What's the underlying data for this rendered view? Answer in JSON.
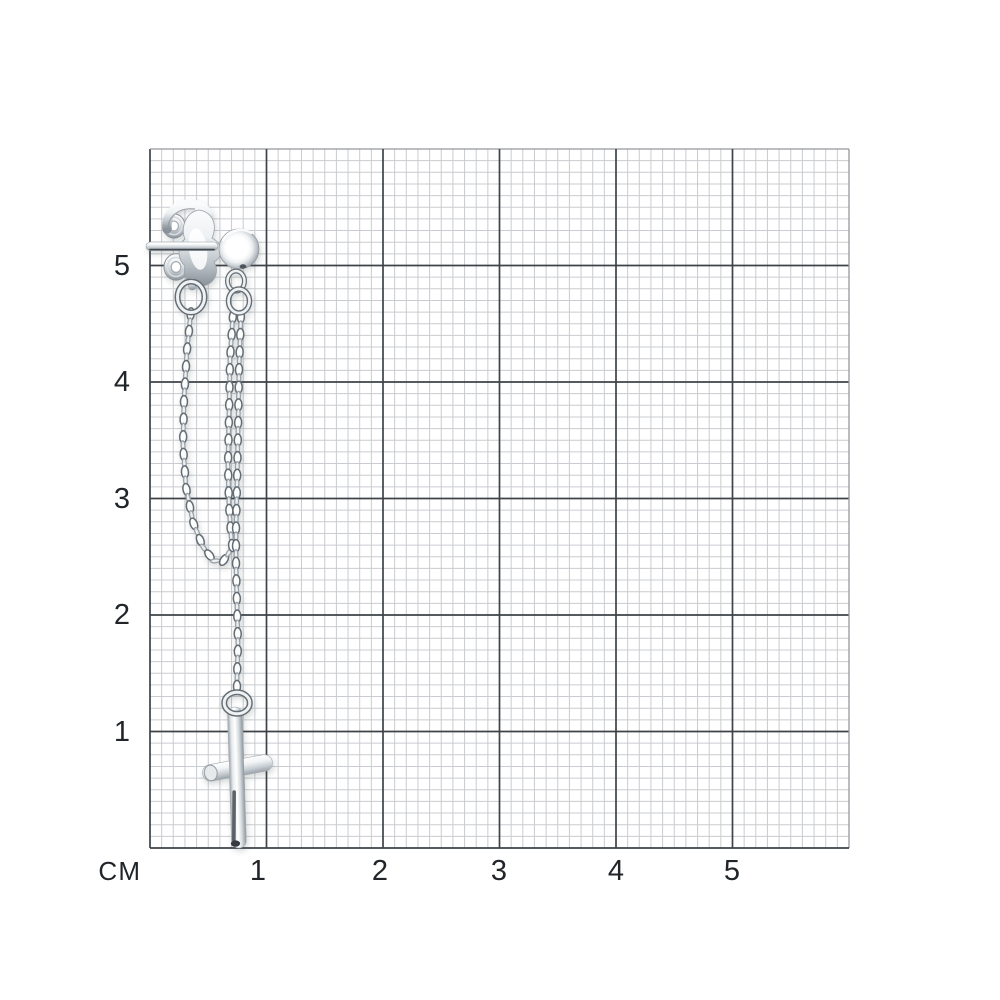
{
  "scene": {
    "background_color": "#ffffff",
    "description": "silver stud earring with ball stud, butterfly clutch and two hanging cable chains, the long chain ending in a cross pendant, photographed on centimeter graph paper"
  },
  "ruler": {
    "unit_label": "СМ",
    "x_tick_labels": [
      "1",
      "2",
      "3",
      "4",
      "5"
    ],
    "y_tick_labels": [
      "5",
      "4",
      "3",
      "2",
      "1"
    ],
    "grid_cells_cm": 6,
    "colors": {
      "minor_line": "#c9ccd0",
      "major_line": "#3d4348",
      "soft_edge": "#94989d",
      "label": "#212529"
    }
  },
  "product": {
    "metal_colors": {
      "highlight": "#ffffff",
      "light": "#eef1f3",
      "mid": "#bcc3c9",
      "shadow": "#8a9299",
      "dark": "#41474d",
      "outline": "#646c73"
    }
  }
}
